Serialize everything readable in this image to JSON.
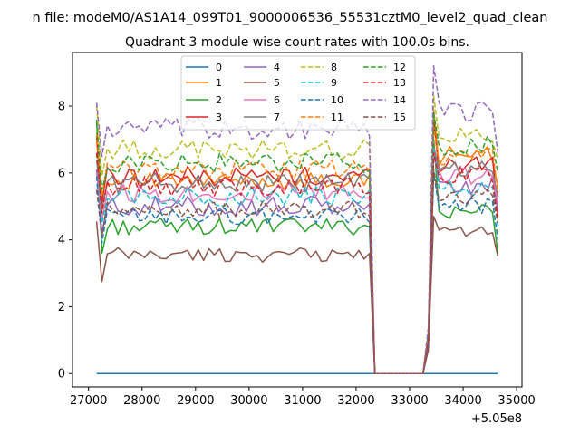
{
  "chart_data": {
    "type": "line",
    "suptitle": "n file: modeM0/AS1A14_099T01_9000006536_55531cztM0_level2_quad_clean",
    "title": "Quadrant 3 module wise count rates with 100.0s bins.",
    "xlabel": "",
    "ylabel": "",
    "x_offset_label": "+5.05e8",
    "xlim": [
      26700,
      35100
    ],
    "ylim": [
      -0.4,
      9.6
    ],
    "xticks": [
      27000,
      28000,
      29000,
      30000,
      31000,
      32000,
      33000,
      34000,
      35000
    ],
    "xtick_labels": [
      "27000",
      "28000",
      "29000",
      "30000",
      "31000",
      "32000",
      "33000",
      "34000",
      "35000"
    ],
    "yticks": [
      0,
      2,
      4,
      6,
      8
    ],
    "ytick_labels": [
      "0",
      "2",
      "4",
      "6",
      "8"
    ],
    "x_start": 27150,
    "x_step": 100,
    "legend_position": "upper-center",
    "segment_a_count": 52,
    "gap_points": [
      32350,
      32450,
      32550,
      32650,
      32750,
      32850,
      32950,
      33050,
      33150,
      33250
    ],
    "series": [
      {
        "name": "0",
        "style": "solid",
        "color": "#1f77b4",
        "a_mean": 0.0,
        "a_amp": 0.0,
        "a_start": 0.0,
        "b_mean": 0.0,
        "b_amp": 0.0,
        "b_start": 0.0,
        "b_end": 0.0
      },
      {
        "name": "1",
        "style": "solid",
        "color": "#ff7f0e",
        "a_mean": 5.75,
        "a_amp": 0.25,
        "a_start": 7.0,
        "b_mean": 6.5,
        "b_amp": 0.3,
        "b_start": 7.9,
        "b_end": 5.6
      },
      {
        "name": "2",
        "style": "solid",
        "color": "#2ca02c",
        "a_mean": 4.4,
        "a_amp": 0.25,
        "a_start": 7.6,
        "b_mean": 4.9,
        "b_amp": 0.25,
        "b_start": 7.0,
        "b_end": 3.6
      },
      {
        "name": "3",
        "style": "solid",
        "color": "#d62728",
        "a_mean": 5.9,
        "a_amp": 0.3,
        "a_start": 7.1,
        "b_mean": 6.2,
        "b_amp": 0.3,
        "b_start": 7.6,
        "b_end": 4.7
      },
      {
        "name": "4",
        "style": "solid",
        "color": "#9467bd",
        "a_mean": 5.0,
        "a_amp": 0.3,
        "a_start": 6.1,
        "b_mean": 5.6,
        "b_amp": 0.3,
        "b_start": 6.6,
        "b_end": 4.9
      },
      {
        "name": "5",
        "style": "solid",
        "color": "#8c564b",
        "a_mean": 3.55,
        "a_amp": 0.22,
        "a_start": 4.55,
        "b_mean": 4.2,
        "b_amp": 0.2,
        "b_start": 4.7,
        "b_end": 3.5
      },
      {
        "name": "6",
        "style": "solid",
        "color": "#e377c2",
        "a_mean": 5.4,
        "a_amp": 0.3,
        "a_start": 6.0,
        "b_mean": 5.9,
        "b_amp": 0.25,
        "b_start": 6.7,
        "b_end": 5.1
      },
      {
        "name": "7",
        "style": "solid",
        "color": "#7f7f7f",
        "a_mean": 5.7,
        "a_amp": 0.3,
        "a_start": 6.4,
        "b_mean": 6.1,
        "b_amp": 0.25,
        "b_start": 6.8,
        "b_end": 5.3
      },
      {
        "name": "8",
        "style": "dashed",
        "color": "#bcbd22",
        "a_mean": 6.7,
        "a_amp": 0.3,
        "a_start": 8.0,
        "b_mean": 7.1,
        "b_amp": 0.3,
        "b_start": 8.3,
        "b_end": 6.4
      },
      {
        "name": "9",
        "style": "dashed",
        "color": "#17becf",
        "a_mean": 5.3,
        "a_amp": 0.3,
        "a_start": 6.6,
        "b_mean": 5.6,
        "b_amp": 0.3,
        "b_start": 6.8,
        "b_end": 4.4
      },
      {
        "name": "10",
        "style": "dashed",
        "color": "#1f77b4",
        "a_mean": 4.7,
        "a_amp": 0.25,
        "a_start": 5.9,
        "b_mean": 5.0,
        "b_amp": 0.25,
        "b_start": 6.0,
        "b_end": 4.0
      },
      {
        "name": "11",
        "style": "dashed",
        "color": "#ff7f0e",
        "a_mean": 6.1,
        "a_amp": 0.3,
        "a_start": 7.2,
        "b_mean": 6.5,
        "b_amp": 0.3,
        "b_start": 7.4,
        "b_end": 5.4
      },
      {
        "name": "12",
        "style": "dashed",
        "color": "#2ca02c",
        "a_mean": 6.3,
        "a_amp": 0.3,
        "a_start": 7.5,
        "b_mean": 6.8,
        "b_amp": 0.3,
        "b_start": 7.8,
        "b_end": 6.0
      },
      {
        "name": "13",
        "style": "dashed",
        "color": "#d62728",
        "a_mean": 5.6,
        "a_amp": 0.3,
        "a_start": 6.6,
        "b_mean": 5.9,
        "b_amp": 0.3,
        "b_start": 6.6,
        "b_end": 4.6
      },
      {
        "name": "14",
        "style": "dashed",
        "color": "#9467bd",
        "a_mean": 7.3,
        "a_amp": 0.35,
        "a_start": 8.1,
        "b_mean": 7.8,
        "b_amp": 0.35,
        "b_start": 9.2,
        "b_end": 6.6
      },
      {
        "name": "15",
        "style": "dashed",
        "color": "#8c564b",
        "a_mean": 4.9,
        "a_amp": 0.25,
        "a_start": 5.5,
        "b_mean": 5.3,
        "b_amp": 0.25,
        "b_start": 6.1,
        "b_end": 4.5
      }
    ]
  }
}
